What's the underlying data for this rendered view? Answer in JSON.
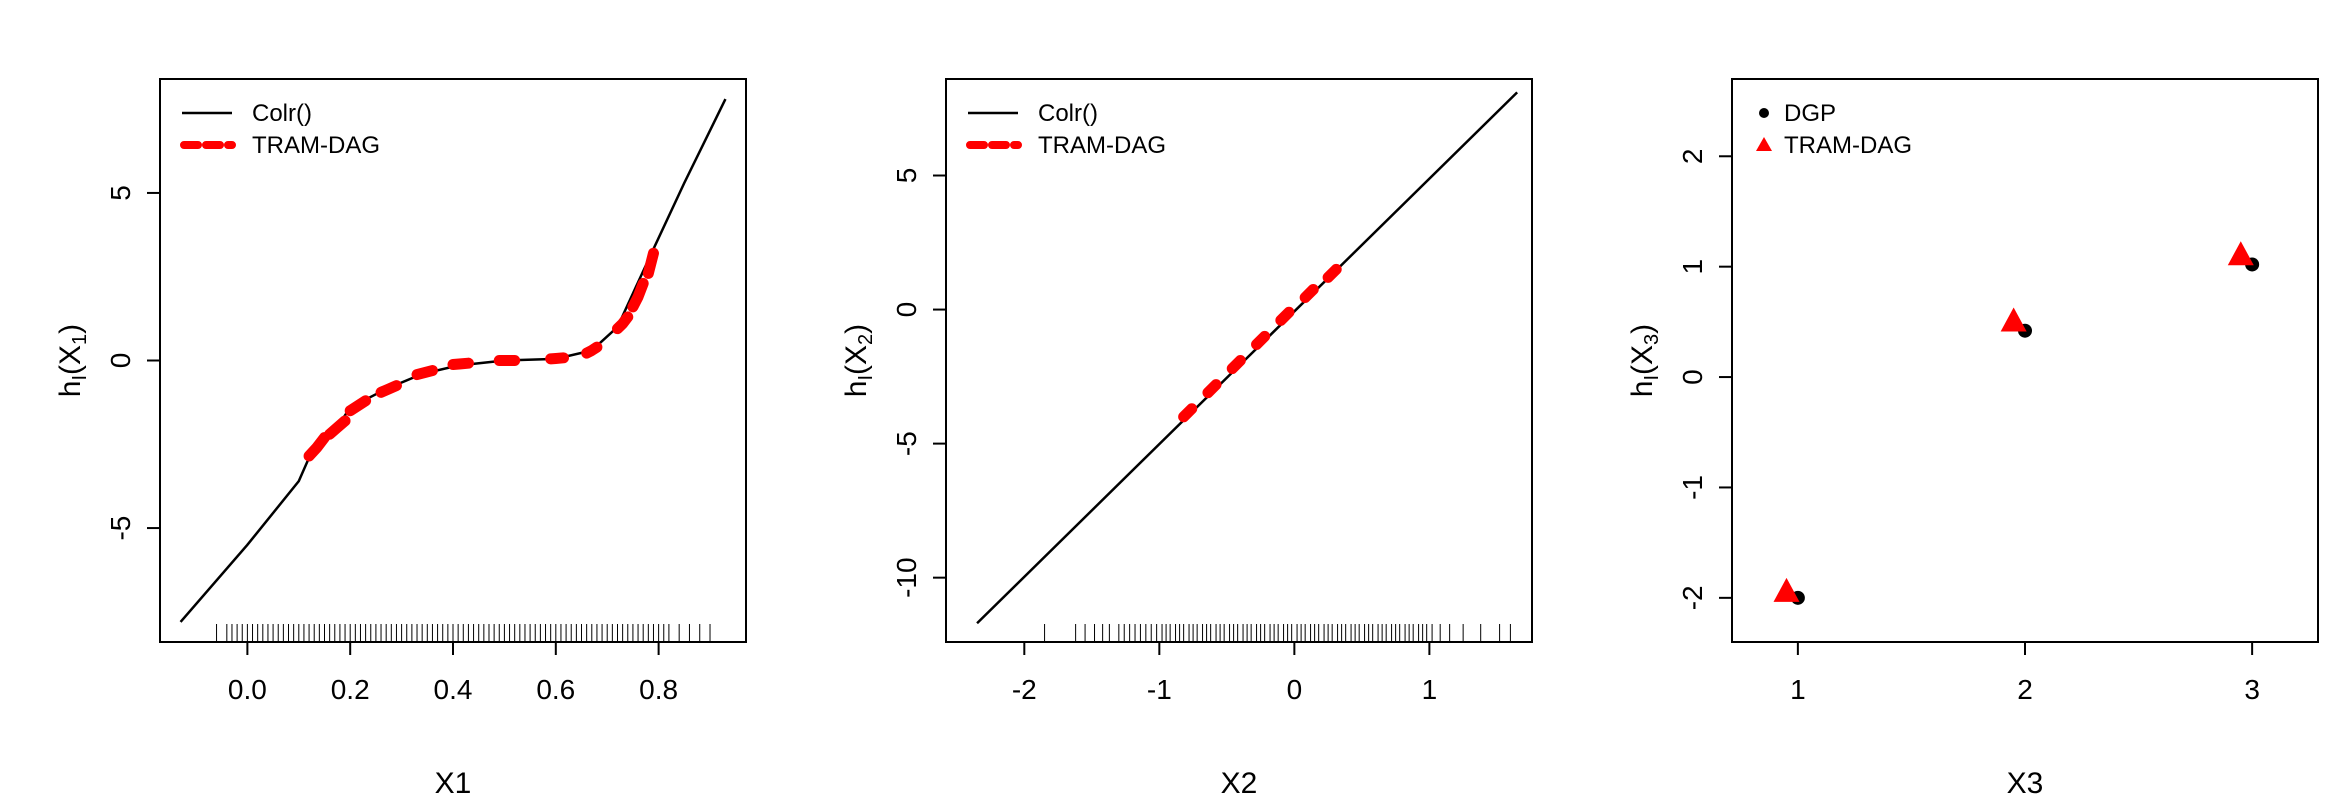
{
  "colors": {
    "colr": "#000000",
    "tram_dag": "#ff0000",
    "dgp": "#000000"
  },
  "chart_data": [
    {
      "type": "line",
      "xlabel": "X1",
      "ylabel": {
        "base": "h",
        "sub1": "I",
        "mid": "(X",
        "sub2": "1",
        "end": ")"
      },
      "xlim": [
        -0.17,
        0.97
      ],
      "ylim": [
        -8.4,
        8.4
      ],
      "xticks": [
        0.0,
        0.2,
        0.4,
        0.6,
        0.8
      ],
      "xtick_labels": [
        "0.0",
        "0.2",
        "0.4",
        "0.6",
        "0.8"
      ],
      "yticks": [
        -5,
        0,
        5
      ],
      "ytick_labels": [
        "-5",
        "0",
        "5"
      ],
      "legend": {
        "position": "top-left",
        "entries": [
          "Colr()",
          "TRAM-DAG"
        ]
      },
      "series": [
        {
          "name": "Colr()",
          "style": "solid",
          "color": "#000000",
          "x": [
            -0.13,
            0.0,
            0.1,
            0.12,
            0.17,
            0.2,
            0.27,
            0.34,
            0.41,
            0.5,
            0.6,
            0.67,
            0.72,
            0.75,
            0.78,
            0.85,
            0.93
          ],
          "y": [
            -7.8,
            -5.5,
            -3.6,
            -2.9,
            -2.1,
            -1.4,
            -0.85,
            -0.4,
            -0.15,
            0.0,
            0.05,
            0.3,
            1.0,
            2.0,
            3.0,
            5.3,
            7.8
          ]
        },
        {
          "name": "TRAM-DAG",
          "style": "dashed",
          "color": "#ff0000",
          "segments": [
            {
              "x": [
                0.12,
                0.135,
                0.15
              ],
              "y": [
                -2.85,
                -2.6,
                -2.3
              ]
            },
            {
              "x": [
                0.16,
                0.175,
                0.19
              ],
              "y": [
                -2.2,
                -2.0,
                -1.8
              ]
            },
            {
              "x": [
                0.2,
                0.215,
                0.23
              ],
              "y": [
                -1.5,
                -1.35,
                -1.2
              ]
            },
            {
              "x": [
                0.26,
                0.275,
                0.29
              ],
              "y": [
                -0.95,
                -0.85,
                -0.75
              ]
            },
            {
              "x": [
                0.33,
                0.345,
                0.36
              ],
              "y": [
                -0.42,
                -0.36,
                -0.3
              ]
            },
            {
              "x": [
                0.4,
                0.415,
                0.43
              ],
              "y": [
                -0.12,
                -0.1,
                -0.08
              ]
            },
            {
              "x": [
                0.49,
                0.505,
                0.52
              ],
              "y": [
                0.0,
                0.0,
                0.0
              ]
            },
            {
              "x": [
                0.59,
                0.6,
                0.615
              ],
              "y": [
                0.05,
                0.06,
                0.08
              ]
            },
            {
              "x": [
                0.66,
                0.67,
                0.68
              ],
              "y": [
                0.22,
                0.3,
                0.4
              ]
            },
            {
              "x": [
                0.72,
                0.73,
                0.74
              ],
              "y": [
                0.95,
                1.1,
                1.3
              ]
            },
            {
              "x": [
                0.75,
                0.76,
                0.77
              ],
              "y": [
                1.6,
                1.9,
                2.3
              ]
            },
            {
              "x": [
                0.78,
                0.785,
                0.79
              ],
              "y": [
                2.6,
                2.9,
                3.2
              ]
            }
          ]
        }
      ],
      "rug": [
        -0.06,
        -0.04,
        -0.03,
        -0.02,
        -0.01,
        0.0,
        0.01,
        0.02,
        0.03,
        0.04,
        0.05,
        0.06,
        0.07,
        0.08,
        0.09,
        0.1,
        0.11,
        0.12,
        0.13,
        0.14,
        0.15,
        0.16,
        0.17,
        0.18,
        0.19,
        0.2,
        0.21,
        0.22,
        0.23,
        0.24,
        0.25,
        0.26,
        0.27,
        0.28,
        0.29,
        0.3,
        0.31,
        0.32,
        0.33,
        0.34,
        0.35,
        0.36,
        0.37,
        0.38,
        0.39,
        0.4,
        0.41,
        0.42,
        0.43,
        0.44,
        0.45,
        0.46,
        0.47,
        0.48,
        0.49,
        0.5,
        0.51,
        0.52,
        0.53,
        0.54,
        0.55,
        0.56,
        0.57,
        0.58,
        0.59,
        0.6,
        0.61,
        0.62,
        0.63,
        0.64,
        0.65,
        0.66,
        0.67,
        0.68,
        0.69,
        0.7,
        0.71,
        0.72,
        0.73,
        0.74,
        0.75,
        0.76,
        0.77,
        0.78,
        0.79,
        0.8,
        0.81,
        0.82,
        0.84,
        0.86,
        0.88,
        0.9
      ]
    },
    {
      "type": "line",
      "xlabel": "X2",
      "ylabel": {
        "base": "h",
        "sub1": "I",
        "mid": "(X",
        "sub2": "2",
        "end": ")"
      },
      "xlim": [
        -2.58,
        1.76
      ],
      "ylim": [
        -12.4,
        8.6
      ],
      "xticks": [
        -2,
        -1,
        0,
        1
      ],
      "xtick_labels": [
        "-2",
        "-1",
        "0",
        "1"
      ],
      "yticks": [
        -10,
        -5,
        0,
        5
      ],
      "ytick_labels": [
        "-10",
        "-5",
        "0",
        "5"
      ],
      "legend": {
        "position": "top-left",
        "entries": [
          "Colr()",
          "TRAM-DAG"
        ]
      },
      "series": [
        {
          "name": "Colr()",
          "style": "solid",
          "color": "#000000",
          "x": [
            -2.35,
            1.65
          ],
          "y": [
            -11.7,
            8.1
          ]
        },
        {
          "name": "TRAM-DAG",
          "style": "dashed",
          "color": "#ff0000",
          "segments": [
            {
              "x": [
                -0.82,
                -0.76
              ],
              "y": [
                -4.0,
                -3.7
              ]
            },
            {
              "x": [
                -0.64,
                -0.58
              ],
              "y": [
                -3.1,
                -2.8
              ]
            },
            {
              "x": [
                -0.46,
                -0.4
              ],
              "y": [
                -2.2,
                -1.9
              ]
            },
            {
              "x": [
                -0.28,
                -0.22
              ],
              "y": [
                -1.3,
                -1.0
              ]
            },
            {
              "x": [
                -0.1,
                -0.04
              ],
              "y": [
                -0.4,
                -0.1
              ]
            },
            {
              "x": [
                0.08,
                0.14
              ],
              "y": [
                0.45,
                0.75
              ]
            },
            {
              "x": [
                0.25,
                0.31
              ],
              "y": [
                1.2,
                1.5
              ]
            }
          ]
        }
      ],
      "rug": [
        -1.85,
        -1.62,
        -1.55,
        -1.48,
        -1.42,
        -1.37,
        -1.3,
        -1.26,
        -1.22,
        -1.18,
        -1.14,
        -1.1,
        -1.06,
        -1.02,
        -0.98,
        -0.95,
        -0.92,
        -0.88,
        -0.85,
        -0.82,
        -0.78,
        -0.75,
        -0.72,
        -0.68,
        -0.65,
        -0.62,
        -0.58,
        -0.55,
        -0.52,
        -0.48,
        -0.45,
        -0.42,
        -0.38,
        -0.35,
        -0.32,
        -0.28,
        -0.25,
        -0.22,
        -0.18,
        -0.15,
        -0.12,
        -0.08,
        -0.05,
        -0.02,
        0.02,
        0.05,
        0.08,
        0.12,
        0.15,
        0.18,
        0.22,
        0.25,
        0.28,
        0.32,
        0.35,
        0.38,
        0.42,
        0.45,
        0.48,
        0.52,
        0.55,
        0.58,
        0.62,
        0.65,
        0.68,
        0.72,
        0.75,
        0.78,
        0.82,
        0.85,
        0.88,
        0.92,
        0.95,
        0.98,
        1.02,
        1.08,
        1.15,
        1.25,
        1.38,
        1.52,
        1.6
      ]
    },
    {
      "type": "scatter",
      "xlabel": "X3",
      "ylabel": {
        "base": "h",
        "sub1": "I",
        "mid": "(X",
        "sub2": "3",
        "end": ")"
      },
      "xlim": [
        0.71,
        3.29
      ],
      "ylim": [
        -2.4,
        2.7
      ],
      "xticks": [
        1,
        2,
        3
      ],
      "xtick_labels": [
        "1",
        "2",
        "3"
      ],
      "yticks": [
        -2,
        -1,
        0,
        1,
        2
      ],
      "ytick_labels": [
        "-2",
        "-1",
        "0",
        "1",
        "2"
      ],
      "legend": {
        "position": "top-left",
        "entries": [
          "DGP",
          "TRAM-DAG"
        ]
      },
      "series": [
        {
          "name": "DGP",
          "marker": "circle",
          "color": "#000000",
          "x": [
            1,
            2,
            3
          ],
          "y": [
            -2.0,
            0.42,
            1.02
          ]
        },
        {
          "name": "TRAM-DAG",
          "marker": "triangle",
          "color": "#ff0000",
          "x": [
            0.95,
            1.95,
            2.95
          ],
          "y": [
            -1.95,
            0.5,
            1.1
          ]
        }
      ]
    }
  ]
}
